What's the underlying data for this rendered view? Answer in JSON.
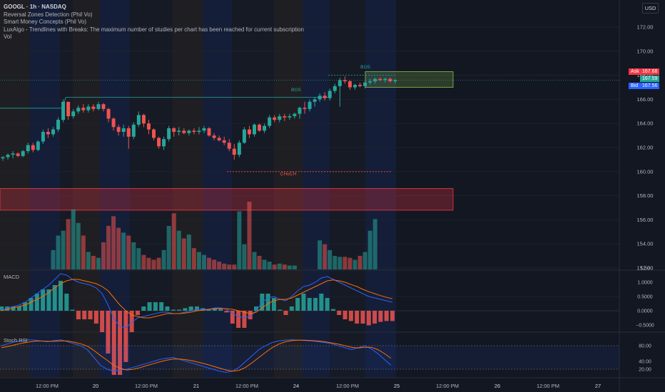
{
  "header": {
    "symbol_line": "GOOGL · 1h · NASDAQ",
    "indicators": [
      "Reversal Zones Detection (Phil Vo)",
      "Smart Money Concepts (Phil Vo)",
      "LuxAlgo - Trendlines with Breaks: The maximum number of studies per chart has been reached for current subscription",
      "Vol"
    ],
    "currency": "USD"
  },
  "panes": {
    "macd_label": "MACD",
    "stoch_label": "Stoch RSI"
  },
  "price_tags": {
    "ask_label": "Ask",
    "ask_value": "167.68",
    "last_value": "167.59",
    "bid_label": "Bid",
    "bid_value": "167.56"
  },
  "annotations": {
    "bos_1": "BOS",
    "bos_2": "BOS",
    "choch": "CHoCH"
  },
  "colors": {
    "up": "#26a69a",
    "down": "#ef5350",
    "background": "#131722",
    "supply_zone": "#f23645",
    "demand_zone": "#8bc34a"
  },
  "chart_data": {
    "type": "candlestick",
    "symbol": "GOOGL",
    "interval": "1h",
    "exchange": "NASDAQ",
    "price_axis": {
      "ylim": [
        150.6,
        173.5
      ],
      "ticks": [
        "172.00",
        "170.00",
        "168.00",
        "166.00",
        "164.00",
        "162.00",
        "160.00",
        "158.00",
        "156.00",
        "154.00",
        "152.00"
      ]
    },
    "time_axis": {
      "ticks": [
        "12:00 PM",
        "20",
        "12:00 PM",
        "21",
        "12:00 PM",
        "24",
        "12:00 PM",
        "25",
        "12:00 PM",
        "26",
        "12:00 PM",
        "27"
      ]
    },
    "candles": [
      [
        161.1,
        161.3,
        160.9,
        161.2
      ],
      [
        161.2,
        161.5,
        161.0,
        161.4
      ],
      [
        161.4,
        161.7,
        161.1,
        161.5
      ],
      [
        161.5,
        161.6,
        161.2,
        161.3
      ],
      [
        161.3,
        161.8,
        161.2,
        161.7
      ],
      [
        161.7,
        162.4,
        161.5,
        162.2
      ],
      [
        162.2,
        162.4,
        161.6,
        161.8
      ],
      [
        161.8,
        162.6,
        161.7,
        162.5
      ],
      [
        162.5,
        163.5,
        162.3,
        163.3
      ],
      [
        163.3,
        163.6,
        162.8,
        163.1
      ],
      [
        163.1,
        163.7,
        162.9,
        163.5
      ],
      [
        163.5,
        164.5,
        163.3,
        164.3
      ],
      [
        164.3,
        166.0,
        164.1,
        165.8
      ],
      [
        165.8,
        165.8,
        164.3,
        164.6
      ],
      [
        164.6,
        165.2,
        164.4,
        165.0
      ],
      [
        165.0,
        165.5,
        164.8,
        165.3
      ],
      [
        165.3,
        165.6,
        164.9,
        165.1
      ],
      [
        165.1,
        165.6,
        164.9,
        165.4
      ],
      [
        165.4,
        165.6,
        165.0,
        165.2
      ],
      [
        165.2,
        165.8,
        165.1,
        165.6
      ],
      [
        165.6,
        165.7,
        165.0,
        165.2
      ],
      [
        165.2,
        165.3,
        164.1,
        164.4
      ],
      [
        164.4,
        164.5,
        163.4,
        163.7
      ],
      [
        163.7,
        163.9,
        163.0,
        163.3
      ],
      [
        163.3,
        163.9,
        162.9,
        163.6
      ],
      [
        163.6,
        163.8,
        161.9,
        162.9
      ],
      [
        162.9,
        164.1,
        162.7,
        163.9
      ],
      [
        163.9,
        165.0,
        163.7,
        164.7
      ],
      [
        164.7,
        164.8,
        163.7,
        164.0
      ],
      [
        164.0,
        164.3,
        163.1,
        163.5
      ],
      [
        163.5,
        163.6,
        162.6,
        162.8
      ],
      [
        162.8,
        162.9,
        161.9,
        162.1
      ],
      [
        162.1,
        162.9,
        161.8,
        162.7
      ],
      [
        162.7,
        163.8,
        162.5,
        163.6
      ],
      [
        163.6,
        163.7,
        162.9,
        163.3
      ],
      [
        163.3,
        163.7,
        163.0,
        163.4
      ],
      [
        163.4,
        163.6,
        163.1,
        163.2
      ],
      [
        163.2,
        163.5,
        163.0,
        163.4
      ],
      [
        163.4,
        163.6,
        163.1,
        163.3
      ],
      [
        163.3,
        163.7,
        163.1,
        163.4
      ],
      [
        163.4,
        163.8,
        163.2,
        163.6
      ],
      [
        163.6,
        163.7,
        162.9,
        163.0
      ],
      [
        163.0,
        163.2,
        162.6,
        162.8
      ],
      [
        162.8,
        163.0,
        162.5,
        162.6
      ],
      [
        162.6,
        162.9,
        162.2,
        162.4
      ],
      [
        162.4,
        162.7,
        161.7,
        161.9
      ],
      [
        161.9,
        162.3,
        161.0,
        161.4
      ],
      [
        161.4,
        162.6,
        161.2,
        162.4
      ],
      [
        162.4,
        163.7,
        162.3,
        163.5
      ],
      [
        163.5,
        163.8,
        162.8,
        163.1
      ],
      [
        163.1,
        164.0,
        162.9,
        163.9
      ],
      [
        163.9,
        164.0,
        163.3,
        163.4
      ],
      [
        163.4,
        164.0,
        163.2,
        163.8
      ],
      [
        163.8,
        164.7,
        163.6,
        164.5
      ],
      [
        164.5,
        164.7,
        164.1,
        164.3
      ],
      [
        164.3,
        164.8,
        164.1,
        164.6
      ],
      [
        164.6,
        164.8,
        164.2,
        164.5
      ],
      [
        164.5,
        164.8,
        164.3,
        164.6
      ],
      [
        164.6,
        164.9,
        164.4,
        164.8
      ],
      [
        164.8,
        165.4,
        164.4,
        165.3
      ],
      [
        165.3,
        165.8,
        164.8,
        165.2
      ],
      [
        165.2,
        166.0,
        165.0,
        165.8
      ],
      [
        165.8,
        166.2,
        165.4,
        166.0
      ],
      [
        166.0,
        166.5,
        165.8,
        166.3
      ],
      [
        166.3,
        166.6,
        165.9,
        166.1
      ],
      [
        166.1,
        166.9,
        165.9,
        166.7
      ],
      [
        166.7,
        167.3,
        166.5,
        167.1
      ],
      [
        167.1,
        167.8,
        165.4,
        167.6
      ],
      [
        167.6,
        167.9,
        167.3,
        167.5
      ],
      [
        167.5,
        167.6,
        166.8,
        167.0
      ],
      [
        167.0,
        167.3,
        166.8,
        167.2
      ],
      [
        167.2,
        167.4,
        167.0,
        167.1
      ],
      [
        167.1,
        167.5,
        166.9,
        167.4
      ],
      [
        167.4,
        167.7,
        167.2,
        167.5
      ],
      [
        167.5,
        167.8,
        167.3,
        167.7
      ],
      [
        167.7,
        167.8,
        167.5,
        167.6
      ],
      [
        167.6,
        167.8,
        167.4,
        167.7
      ],
      [
        167.7,
        167.8,
        167.4,
        167.5
      ],
      [
        167.5,
        167.7,
        167.3,
        167.6
      ]
    ],
    "volume": [
      0,
      0,
      0,
      0,
      0,
      0,
      0,
      0,
      0,
      0,
      20,
      35,
      40,
      52,
      62,
      48,
      35,
      18,
      14,
      12,
      28,
      45,
      55,
      43,
      38,
      35,
      28,
      22,
      15,
      12,
      10,
      12,
      20,
      45,
      58,
      40,
      32,
      36,
      22,
      18,
      15,
      12,
      10,
      8,
      6,
      5,
      5,
      60,
      26,
      70,
      18,
      14,
      10,
      8,
      5,
      6,
      5,
      4,
      4,
      0,
      0,
      0,
      0,
      30,
      26,
      20,
      14,
      13,
      13,
      12,
      10,
      14,
      18,
      40,
      52,
      0,
      0,
      0,
      0
    ],
    "macd": {
      "ylim": [
        -0.7,
        1.5
      ],
      "ticks": [
        "1.50",
        "1.0000",
        "0.5000",
        "0.0000",
        "−0.5000"
      ],
      "macd_line": [
        0.05,
        0.1,
        0.15,
        0.2,
        0.3,
        0.45,
        0.6,
        0.75,
        0.9,
        1.1,
        1.3,
        1.25,
        1.1,
        1.0,
        0.95,
        0.9,
        0.8,
        0.6,
        0.2,
        -0.3,
        -0.55,
        -0.6,
        -0.4,
        -0.25,
        -0.2,
        -0.15,
        -0.1,
        -0.05,
        -0.05,
        -0.1,
        -0.1,
        -0.05,
        0.0,
        0.05,
        0.05,
        0.05,
        0.1,
        0.1,
        0.05,
        -0.1,
        -0.2,
        -0.25,
        -0.2,
        0.0,
        0.3,
        0.45,
        0.5,
        0.4,
        0.35,
        0.5,
        0.7,
        0.85,
        0.9,
        1.0,
        1.15,
        1.2,
        1.1,
        1.0,
        0.9,
        0.8,
        0.7,
        0.6,
        0.5,
        0.45,
        0.4,
        0.35,
        0.3
      ],
      "signal_line": [
        0.0,
        0.05,
        0.1,
        0.15,
        0.2,
        0.3,
        0.4,
        0.5,
        0.65,
        0.8,
        0.95,
        1.05,
        1.1,
        1.1,
        1.05,
        1.0,
        0.95,
        0.85,
        0.7,
        0.45,
        0.2,
        0.0,
        -0.15,
        -0.2,
        -0.25,
        -0.25,
        -0.2,
        -0.15,
        -0.1,
        -0.1,
        -0.1,
        -0.08,
        -0.05,
        0.0,
        0.02,
        0.05,
        0.07,
        0.08,
        0.07,
        0.05,
        0.0,
        -0.05,
        -0.1,
        -0.05,
        0.1,
        0.25,
        0.35,
        0.4,
        0.4,
        0.45,
        0.55,
        0.65,
        0.75,
        0.85,
        0.95,
        1.05,
        1.08,
        1.05,
        1.0,
        0.92,
        0.85,
        0.75,
        0.67,
        0.6,
        0.53,
        0.47,
        0.42
      ]
    },
    "stoch_rsi": {
      "ylim": [
        0,
        110
      ],
      "ticks": [
        "80.00",
        "40.00",
        "20.00"
      ],
      "k": [
        80,
        85,
        90,
        92,
        95,
        94,
        92,
        90,
        93,
        95,
        90,
        85,
        80,
        70,
        50,
        30,
        20,
        15,
        18,
        20,
        25,
        30,
        35,
        40,
        45,
        48,
        50,
        45,
        40,
        35,
        30,
        25,
        20,
        15,
        12,
        15,
        25,
        40,
        55,
        70,
        80,
        88,
        92,
        94,
        95,
        94,
        93,
        92,
        90,
        88,
        85,
        80,
        75,
        70,
        75,
        80,
        72,
        60,
        45,
        30
      ],
      "d": [
        75,
        78,
        82,
        86,
        89,
        91,
        92,
        91,
        91,
        92,
        92,
        89,
        85,
        79,
        68,
        55,
        43,
        30,
        22,
        18,
        20,
        24,
        29,
        34,
        39,
        43,
        46,
        46,
        44,
        41,
        37,
        33,
        28,
        23,
        18,
        15,
        17,
        25,
        37,
        50,
        63,
        75,
        84,
        90,
        93,
        94,
        94,
        93,
        92,
        90,
        87,
        84,
        80,
        76,
        74,
        76,
        76,
        70,
        60,
        48
      ]
    },
    "zones": {
      "supply_zone": [
        158.6,
        156.8
      ],
      "demand_zone": [
        168.3,
        167.0
      ],
      "bos_level_1": 166.0,
      "bos_level_2": 168.0,
      "choch_level": 160.0
    },
    "current_price": 167.59
  }
}
